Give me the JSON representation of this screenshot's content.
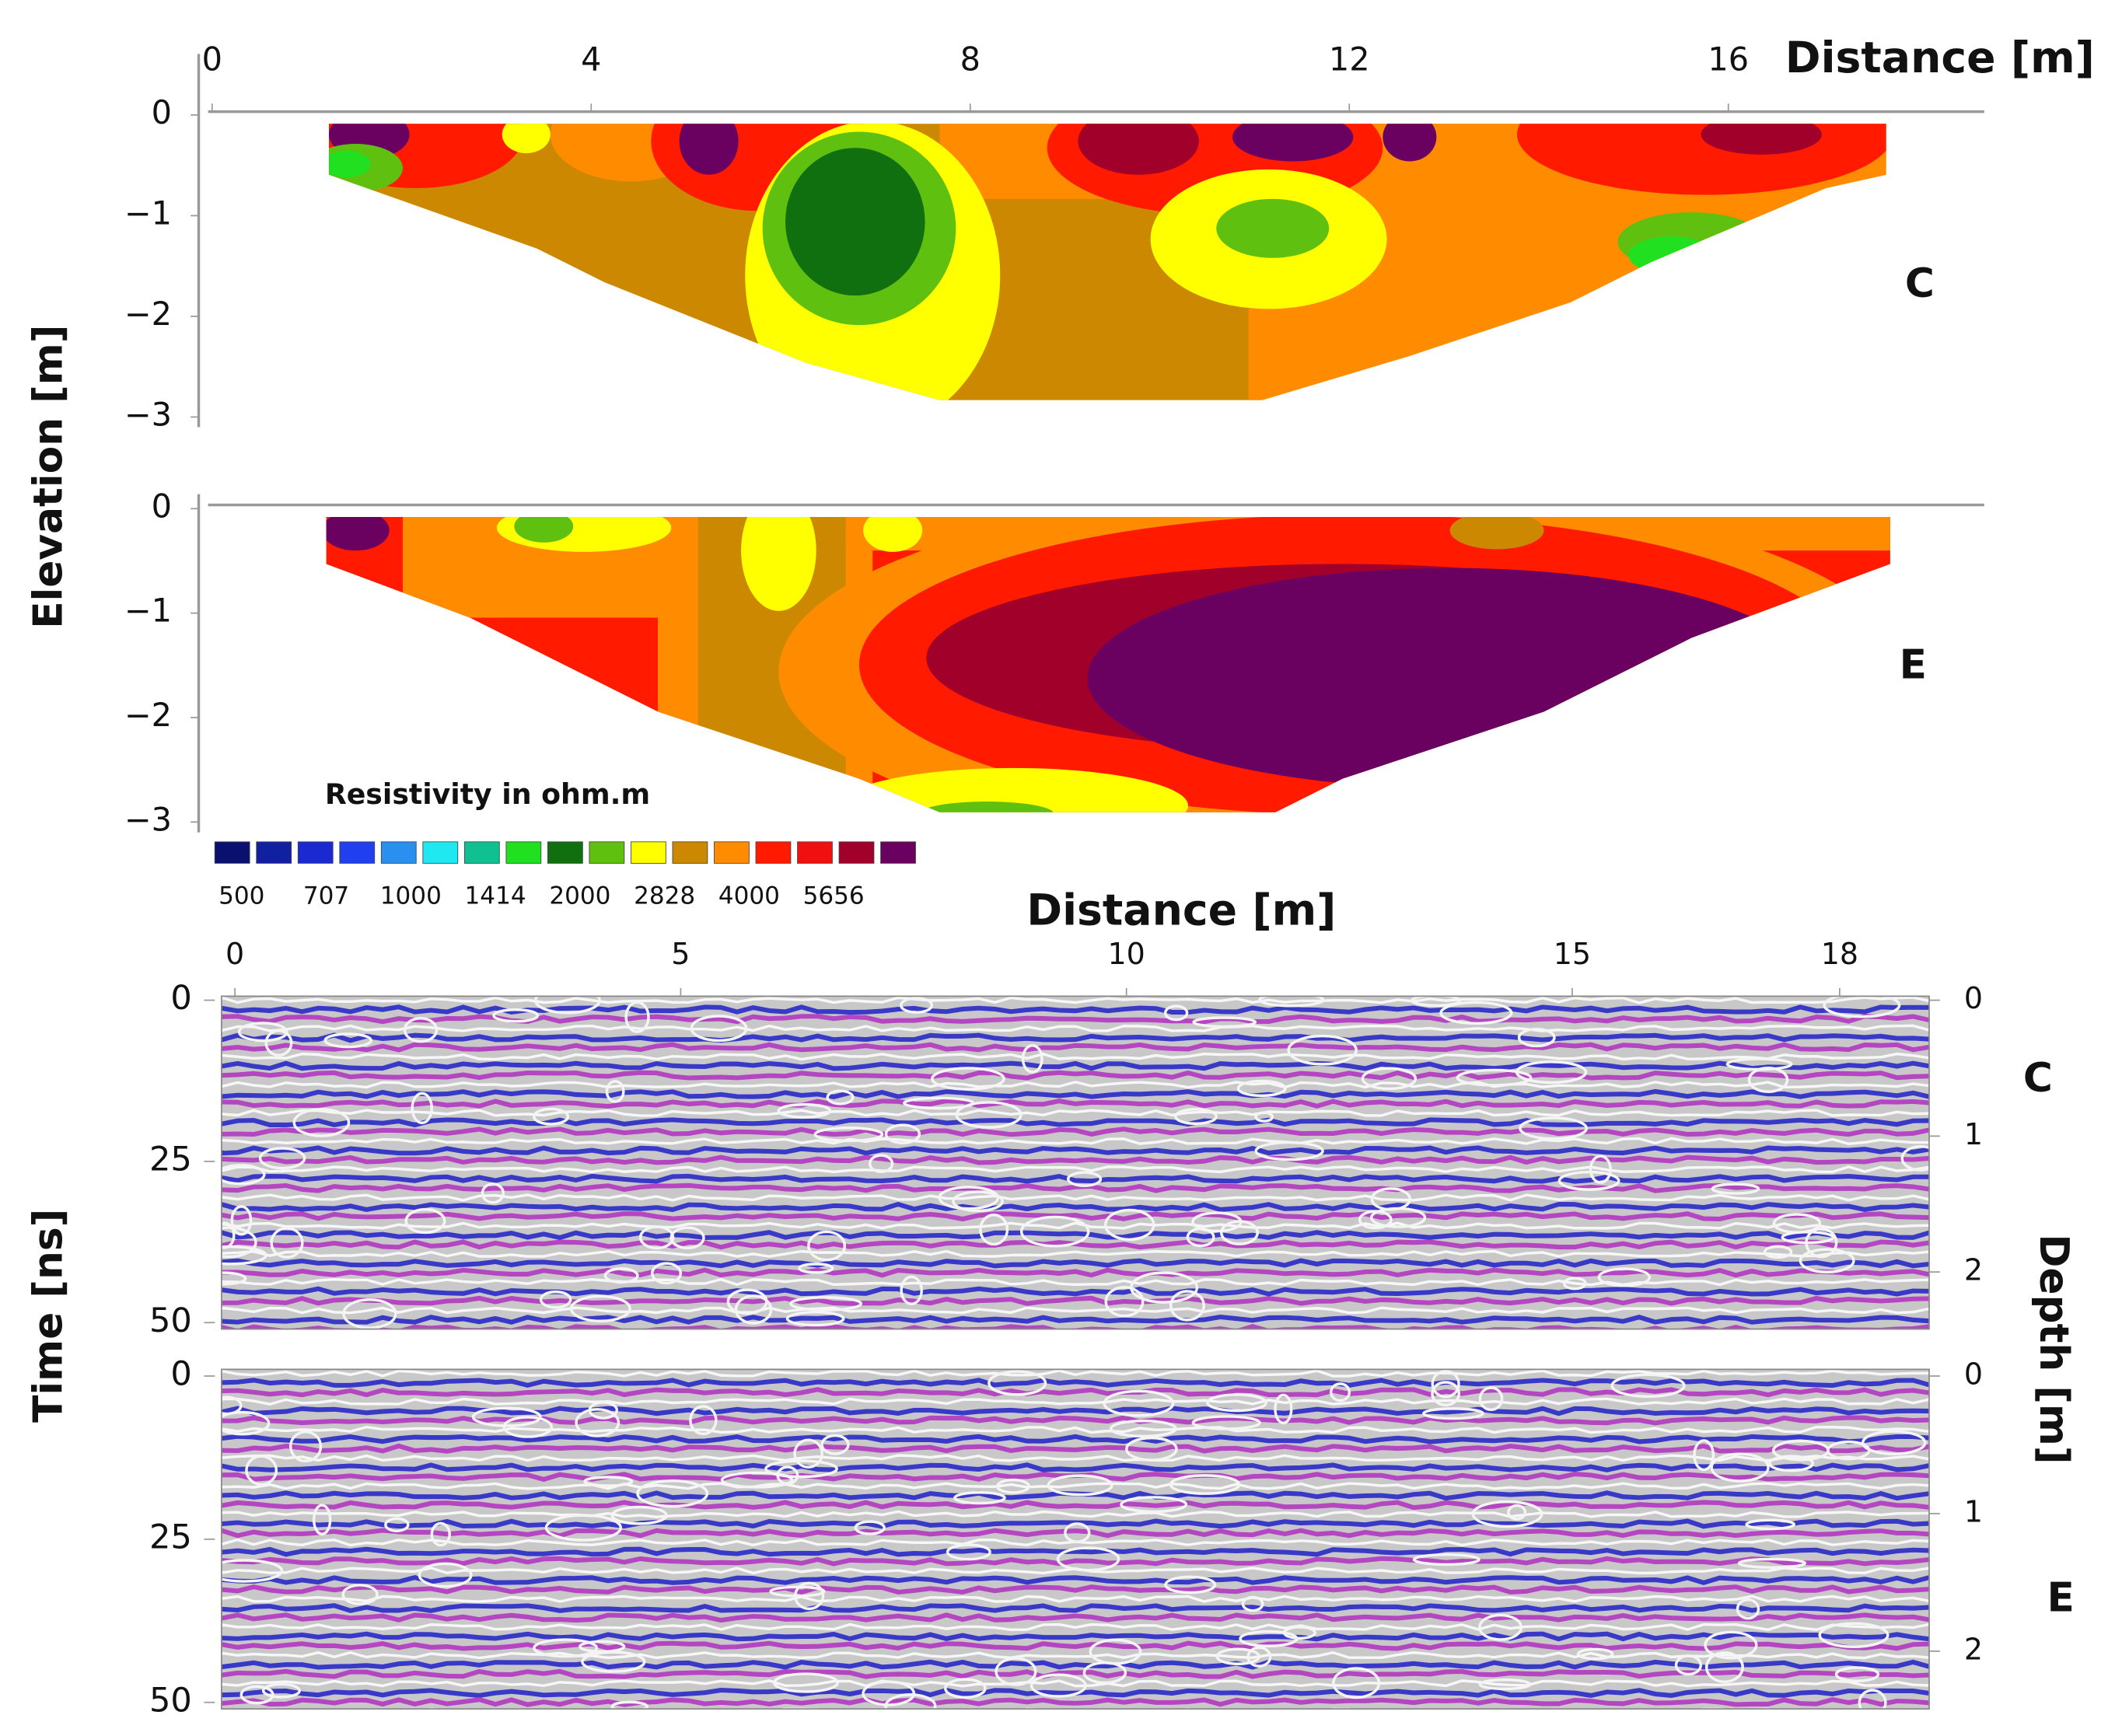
{
  "chart_data": [
    {
      "type": "contour",
      "label": "C",
      "xlabel": "Distance [m]",
      "ylabel": "Elevation [m]",
      "xlim": [
        0,
        18.7
      ],
      "xticks": [
        0,
        4,
        8,
        12,
        16
      ],
      "ylim": [
        -3.1,
        0.1
      ],
      "yticks": [
        0,
        {
          "value": -1,
          "label": "−1"
        },
        {
          "value": -2,
          "label": "−2"
        },
        {
          "value": -3,
          "label": "−3"
        }
      ]
    },
    {
      "type": "contour",
      "label": "E",
      "xlim": [
        0,
        18.7
      ],
      "ylim": [
        -3.1,
        0.1
      ],
      "yticks": [
        0,
        {
          "value": -1,
          "label": "−1"
        },
        {
          "value": -2,
          "label": "−2"
        },
        {
          "value": -3,
          "label": "−3"
        }
      ],
      "colorbar": {
        "title": "Resistivity in ohm.m",
        "colors": [
          "#0a1070",
          "#1020a0",
          "#1a2ad0",
          "#2040f0",
          "#2a90f0",
          "#20e8f0",
          "#10c090",
          "#20e020",
          "#107010",
          "#60c010",
          "#ffff00",
          "#cc8800",
          "#ff8c00",
          "#ff1a00",
          "#f01010",
          "#a0002a",
          "#6a0060"
        ],
        "ticks": [
          500,
          707,
          1000,
          1414,
          2000,
          2828,
          4000,
          5656
        ]
      }
    },
    {
      "type": "radargram",
      "label": "C",
      "xlabel": "Distance [m]",
      "ylabel": "Time [ns]",
      "y2label": "Depth [m]",
      "xlim": [
        0,
        19.2
      ],
      "xticks": [
        0,
        5,
        10,
        15,
        18
      ],
      "ylim": [
        0,
        51
      ],
      "yticks": [
        0,
        25,
        50
      ],
      "y2lim": [
        0,
        2.42
      ],
      "y2ticks": [
        0,
        1,
        2
      ]
    },
    {
      "type": "radargram",
      "label": "E",
      "xlim": [
        0,
        19.2
      ],
      "ylim": [
        0,
        51
      ],
      "yticks": [
        0,
        25,
        50
      ],
      "y2lim": [
        0,
        2.42
      ],
      "y2ticks": [
        0,
        1,
        2
      ]
    }
  ]
}
